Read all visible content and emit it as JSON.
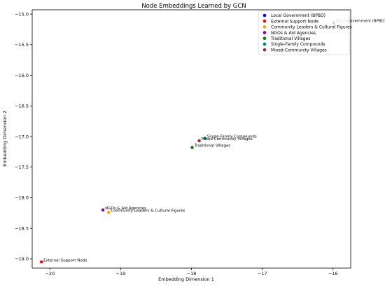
{
  "chart_data": {
    "type": "scatter",
    "title": "Node Embeddings Learned by GCN",
    "xlabel": "Embedding Dimension 1",
    "ylabel": "Embedding Dimension 2",
    "xlim": [
      -20.25,
      -15.75
    ],
    "ylim": [
      -19.15,
      -14.93
    ],
    "xticks": [
      -20,
      -19,
      -18,
      -17,
      -16
    ],
    "yticks": [
      -15.0,
      -15.5,
      -16.0,
      -16.5,
      -17.0,
      -17.5,
      -18.0,
      -18.5,
      -19.0
    ],
    "xtick_labels": [
      "−20",
      "−19",
      "−18",
      "−17",
      "−16"
    ],
    "ytick_labels": [
      "−15.0",
      "−15.5",
      "−16.0",
      "−16.5",
      "−17.0",
      "−17.5",
      "−18.0",
      "−18.5",
      "−19.0"
    ],
    "grid": false,
    "legend_position": "top-right",
    "series": [
      {
        "name": "Local Government (BPBD)",
        "color": "#0000ff",
        "x": -15.99,
        "y": -15.14,
        "label": "Local Government (BPBD)"
      },
      {
        "name": "External Support Node",
        "color": "#ff0000",
        "x": -20.12,
        "y": -19.05,
        "label": "External Support Node"
      },
      {
        "name": "Community Leaders & Cultural Figures",
        "color": "#ffa500",
        "x": -19.17,
        "y": -18.24,
        "label": "Community Leaders & Cultural Figures"
      },
      {
        "name": "NGOs & Aid Agencies",
        "color": "#800080",
        "x": -19.25,
        "y": -18.2,
        "label": "NGOs & Aid Agencies"
      },
      {
        "name": "Traditional Villages",
        "color": "#008000",
        "x": -17.99,
        "y": -17.18,
        "label": "Traditional Villages"
      },
      {
        "name": "Single-Family Compounds",
        "color": "#008080",
        "x": -17.81,
        "y": -17.03,
        "label": "Single-Family Compounds"
      },
      {
        "name": "Mixed-Community Villages",
        "color": "#a52a2a",
        "x": -17.89,
        "y": -17.07,
        "label": "Mixed-Community Villages"
      }
    ]
  }
}
